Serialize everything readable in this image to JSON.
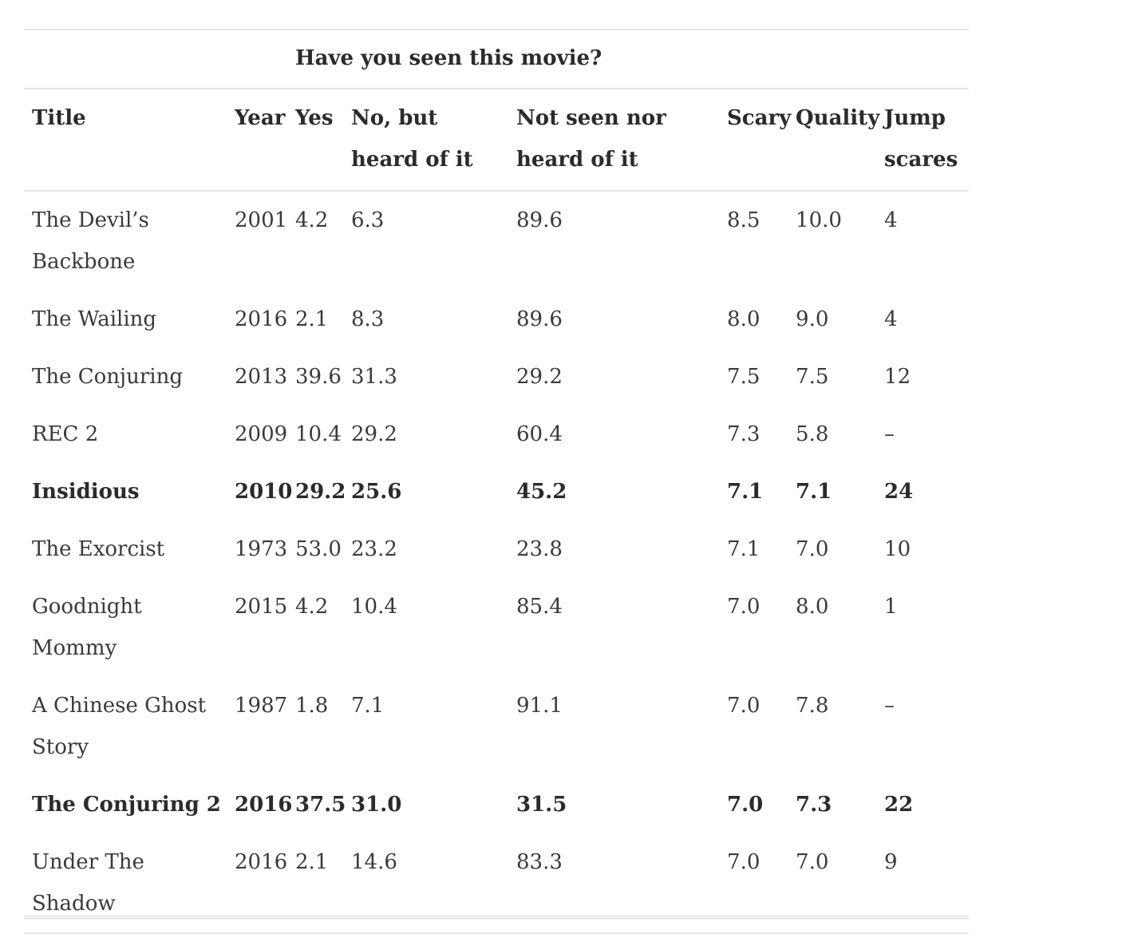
{
  "table": {
    "group_header": "Have you seen this movie?",
    "columns": [
      "Title",
      "Year",
      "Yes",
      "No, but heard of it",
      "Not seen nor heard of it",
      "Scary",
      "Quality",
      "Jump scares"
    ],
    "rows": [
      {
        "title": "The Devil’s Backbone",
        "year": "2001",
        "yes": "4.2",
        "heard": "6.3",
        "not_seen": "89.6",
        "scary": "8.5",
        "quality": "10.0",
        "jump": "4",
        "bold": false
      },
      {
        "title": "The Wailing",
        "year": "2016",
        "yes": "2.1",
        "heard": "8.3",
        "not_seen": "89.6",
        "scary": "8.0",
        "quality": "9.0",
        "jump": "4",
        "bold": false
      },
      {
        "title": "The Conjuring",
        "year": "2013",
        "yes": "39.6",
        "heard": "31.3",
        "not_seen": "29.2",
        "scary": "7.5",
        "quality": "7.5",
        "jump": "12",
        "bold": false
      },
      {
        "title": "REC 2",
        "year": "2009",
        "yes": "10.4",
        "heard": "29.2",
        "not_seen": "60.4",
        "scary": "7.3",
        "quality": "5.8",
        "jump": "–",
        "bold": false
      },
      {
        "title": "Insidious",
        "year": "2010",
        "yes": "29.2",
        "heard": "25.6",
        "not_seen": "45.2",
        "scary": "7.1",
        "quality": "7.1",
        "jump": "24",
        "bold": true
      },
      {
        "title": "The Exorcist",
        "year": "1973",
        "yes": "53.0",
        "heard": "23.2",
        "not_seen": "23.8",
        "scary": "7.1",
        "quality": "7.0",
        "jump": "10",
        "bold": false
      },
      {
        "title": "Goodnight Mommy",
        "year": "2015",
        "yes": "4.2",
        "heard": "10.4",
        "not_seen": "85.4",
        "scary": "7.0",
        "quality": "8.0",
        "jump": "1",
        "bold": false
      },
      {
        "title": "A Chinese Ghost Story",
        "year": "1987",
        "yes": "1.8",
        "heard": "7.1",
        "not_seen": "91.1",
        "scary": "7.0",
        "quality": "7.8",
        "jump": "–",
        "bold": false
      },
      {
        "title": "The Conjuring 2",
        "year": "2016",
        "yes": "37.5",
        "heard": "31.0",
        "not_seen": "31.5",
        "scary": "7.0",
        "quality": "7.3",
        "jump": "22",
        "bold": true
      },
      {
        "title": "Under The Shadow",
        "year": "2016",
        "yes": "2.1",
        "heard": "14.6",
        "not_seen": "83.3",
        "scary": "7.0",
        "quality": "7.0",
        "jump": "9",
        "bold": false
      }
    ]
  }
}
